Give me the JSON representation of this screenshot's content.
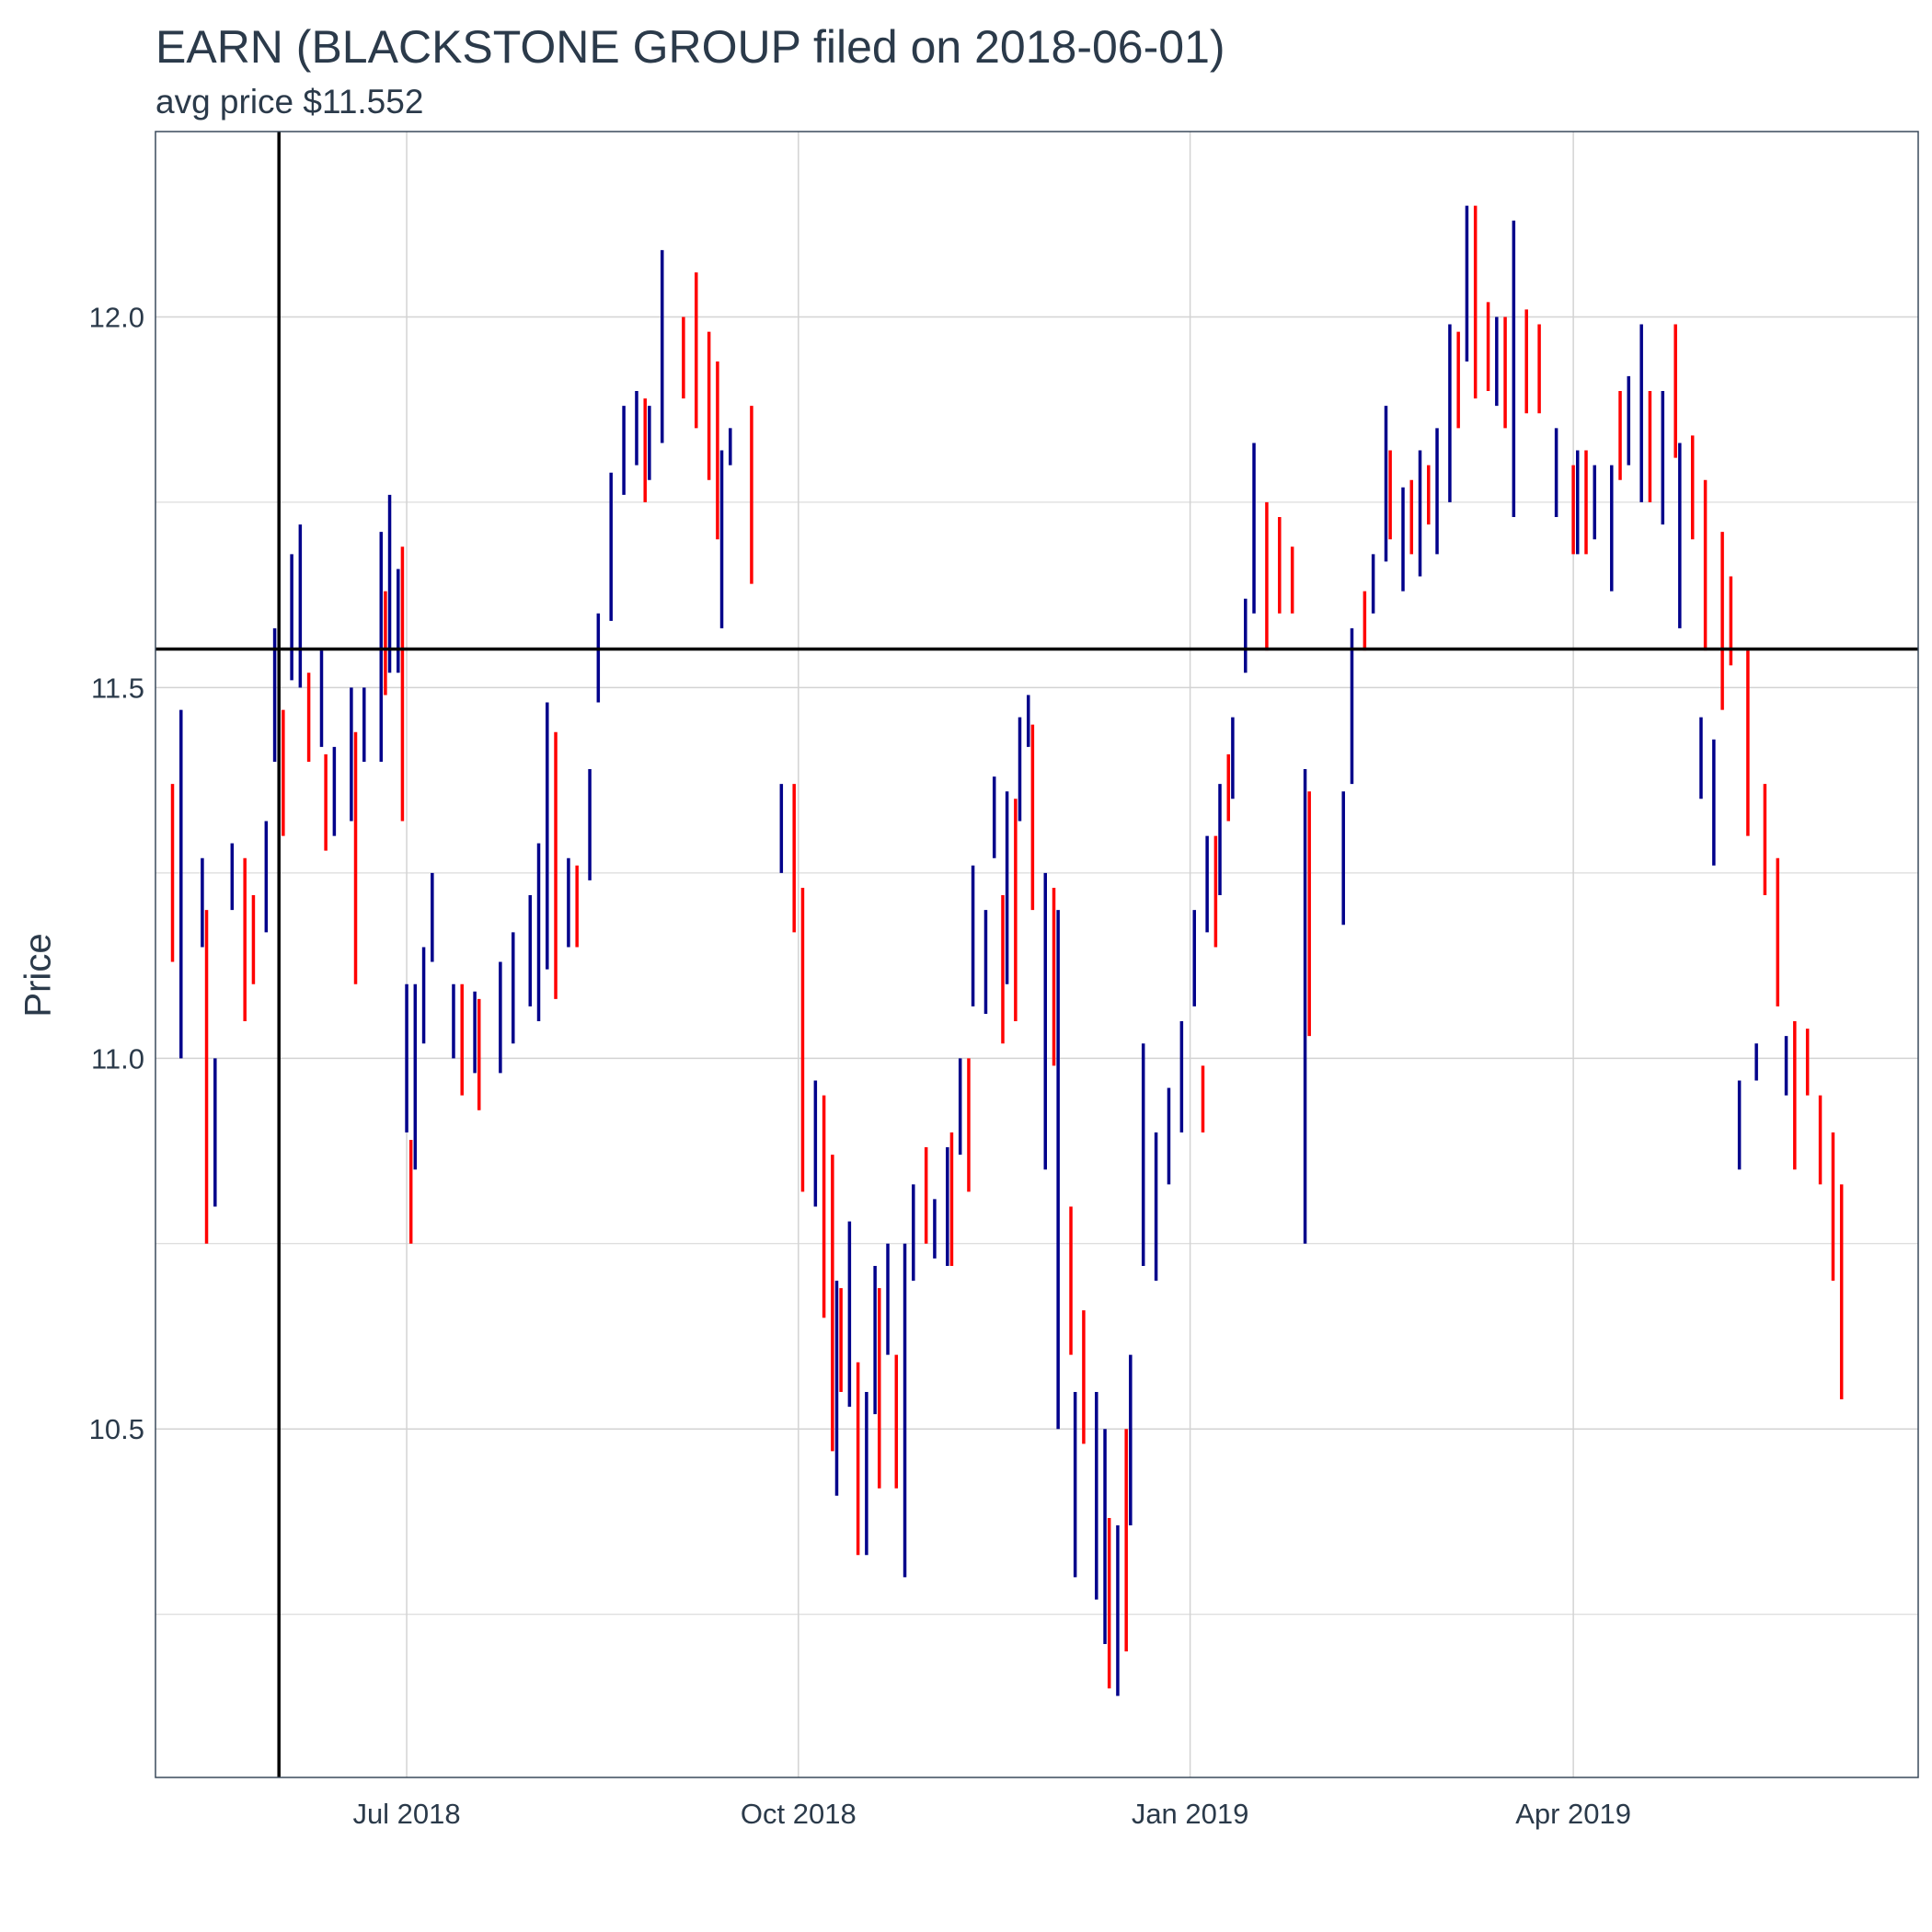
{
  "chart_data": {
    "type": "ohlc",
    "title": "EARN (BLACKSTONE GROUP filed on 2018-06-01)",
    "subtitle": "avg price $11.552",
    "xlabel": "",
    "ylabel": "Price",
    "x_axis": {
      "range": [
        "2018-05-03",
        "2019-06-21"
      ],
      "ticks": [
        {
          "date": "2018-07-01",
          "label": "Jul 2018"
        },
        {
          "date": "2018-10-01",
          "label": "Oct 2018"
        },
        {
          "date": "2019-01-01",
          "label": "Jan 2019"
        },
        {
          "date": "2019-04-01",
          "label": "Apr 2019"
        }
      ]
    },
    "y_axis": {
      "range": [
        10.03,
        12.25
      ],
      "ticks": [
        10.5,
        11.0,
        11.5,
        12.0
      ],
      "tick_labels": [
        "10.5",
        "11.0",
        "11.5",
        "12.0"
      ],
      "minor_ticks": [
        10.25,
        10.75,
        11.25,
        11.75
      ]
    },
    "grid": true,
    "reference_lines": [
      {
        "orientation": "vertical",
        "value": "2018-06-01",
        "color": "#000000"
      },
      {
        "orientation": "horizontal",
        "value": 11.552,
        "color": "#000000"
      }
    ],
    "colors": {
      "up": "#00008B",
      "down": "#FF0000",
      "grid": "#d3d3d3",
      "text": "#2b3a4a"
    },
    "series": [
      {
        "name": "up",
        "color": "#00008B",
        "segments": [
          [
            "2018-05-09",
            11.0,
            11.47
          ],
          [
            "2018-05-14",
            11.15,
            11.27
          ],
          [
            "2018-05-17",
            10.8,
            11.0
          ],
          [
            "2018-05-21",
            11.2,
            11.29
          ],
          [
            "2018-05-29",
            11.17,
            11.32
          ],
          [
            "2018-05-31",
            11.4,
            11.58
          ],
          [
            "2018-06-04",
            11.51,
            11.68
          ],
          [
            "2018-06-06",
            11.5,
            11.72
          ],
          [
            "2018-06-11",
            11.42,
            11.55
          ],
          [
            "2018-06-14",
            11.3,
            11.42
          ],
          [
            "2018-06-18",
            11.32,
            11.5
          ],
          [
            "2018-06-21",
            11.4,
            11.5
          ],
          [
            "2018-06-25",
            11.4,
            11.71
          ],
          [
            "2018-06-27",
            11.52,
            11.76
          ],
          [
            "2018-06-29",
            11.52,
            11.66
          ],
          [
            "2018-07-01",
            10.9,
            11.1
          ],
          [
            "2018-07-03",
            10.85,
            11.1
          ],
          [
            "2018-07-05",
            11.02,
            11.15
          ],
          [
            "2018-07-07",
            11.13,
            11.25
          ],
          [
            "2018-07-12",
            11.0,
            11.1
          ],
          [
            "2018-07-17",
            10.98,
            11.09
          ],
          [
            "2018-07-23",
            10.98,
            11.13
          ],
          [
            "2018-07-26",
            11.02,
            11.17
          ],
          [
            "2018-07-30",
            11.07,
            11.22
          ],
          [
            "2018-08-01",
            11.05,
            11.29
          ],
          [
            "2018-08-03",
            11.12,
            11.48
          ],
          [
            "2018-08-08",
            11.15,
            11.27
          ],
          [
            "2018-08-13",
            11.24,
            11.39
          ],
          [
            "2018-08-15",
            11.48,
            11.6
          ],
          [
            "2018-08-18",
            11.59,
            11.79
          ],
          [
            "2018-08-21",
            11.76,
            11.88
          ],
          [
            "2018-08-24",
            11.8,
            11.9
          ],
          [
            "2018-08-27",
            11.78,
            11.88
          ],
          [
            "2018-08-30",
            11.83,
            12.09
          ],
          [
            "2018-09-13",
            11.58,
            11.82
          ],
          [
            "2018-09-15",
            11.8,
            11.85
          ],
          [
            "2018-09-27",
            11.25,
            11.37
          ],
          [
            "2018-10-05",
            10.8,
            10.97
          ],
          [
            "2018-10-10",
            10.41,
            10.7
          ],
          [
            "2018-10-13",
            10.53,
            10.78
          ],
          [
            "2018-10-17",
            10.33,
            10.55
          ],
          [
            "2018-10-19",
            10.52,
            10.72
          ],
          [
            "2018-10-22",
            10.6,
            10.75
          ],
          [
            "2018-10-26",
            10.3,
            10.75
          ],
          [
            "2018-10-28",
            10.7,
            10.83
          ],
          [
            "2018-11-02",
            10.73,
            10.81
          ],
          [
            "2018-11-05",
            10.72,
            10.88
          ],
          [
            "2018-11-08",
            10.87,
            11.0
          ],
          [
            "2018-11-11",
            11.07,
            11.26
          ],
          [
            "2018-11-14",
            11.06,
            11.2
          ],
          [
            "2018-11-16",
            11.27,
            11.38
          ],
          [
            "2018-11-19",
            11.1,
            11.36
          ],
          [
            "2018-11-22",
            11.32,
            11.46
          ],
          [
            "2018-11-24",
            11.42,
            11.49
          ],
          [
            "2018-11-28",
            10.85,
            11.25
          ],
          [
            "2018-12-01",
            10.5,
            11.2
          ],
          [
            "2018-12-05",
            10.3,
            10.55
          ],
          [
            "2018-12-10",
            10.27,
            10.55
          ],
          [
            "2018-12-12",
            10.21,
            10.5
          ],
          [
            "2018-12-15",
            10.14,
            10.37
          ],
          [
            "2018-12-18",
            10.37,
            10.6
          ],
          [
            "2018-12-21",
            10.72,
            11.02
          ],
          [
            "2018-12-24",
            10.7,
            10.9
          ],
          [
            "2018-12-27",
            10.83,
            10.96
          ],
          [
            "2018-12-30",
            10.9,
            11.05
          ],
          [
            "2019-01-02",
            11.07,
            11.2
          ],
          [
            "2019-01-05",
            11.17,
            11.3
          ],
          [
            "2019-01-08",
            11.22,
            11.37
          ],
          [
            "2019-01-11",
            11.35,
            11.46
          ],
          [
            "2019-01-14",
            11.52,
            11.62
          ],
          [
            "2019-01-16",
            11.6,
            11.83
          ],
          [
            "2019-01-28",
            10.75,
            11.39
          ],
          [
            "2019-02-06",
            11.18,
            11.36
          ],
          [
            "2019-02-08",
            11.37,
            11.58
          ],
          [
            "2019-02-13",
            11.6,
            11.68
          ],
          [
            "2019-02-16",
            11.67,
            11.88
          ],
          [
            "2019-02-20",
            11.63,
            11.77
          ],
          [
            "2019-02-24",
            11.65,
            11.82
          ],
          [
            "2019-02-28",
            11.68,
            11.85
          ],
          [
            "2019-03-03",
            11.75,
            11.99
          ],
          [
            "2019-03-07",
            11.94,
            12.15
          ],
          [
            "2019-03-14",
            11.88,
            12.0
          ],
          [
            "2019-03-18",
            11.73,
            12.13
          ],
          [
            "2019-03-28",
            11.73,
            11.85
          ],
          [
            "2019-04-02",
            11.68,
            11.82
          ],
          [
            "2019-04-06",
            11.7,
            11.8
          ],
          [
            "2019-04-10",
            11.63,
            11.8
          ],
          [
            "2019-04-14",
            11.8,
            11.92
          ],
          [
            "2019-04-17",
            11.75,
            11.99
          ],
          [
            "2019-04-22",
            11.72,
            11.9
          ],
          [
            "2019-04-26",
            11.58,
            11.83
          ],
          [
            "2019-05-01",
            11.35,
            11.46
          ],
          [
            "2019-05-04",
            11.26,
            11.43
          ],
          [
            "2019-05-10",
            10.85,
            10.97
          ],
          [
            "2019-05-14",
            10.97,
            11.02
          ],
          [
            "2019-05-21",
            10.95,
            11.03
          ]
        ]
      },
      {
        "name": "down",
        "color": "#FF0000",
        "segments": [
          [
            "2018-05-07",
            11.13,
            11.37
          ],
          [
            "2018-05-15",
            10.75,
            11.2
          ],
          [
            "2018-05-24",
            11.05,
            11.27
          ],
          [
            "2018-05-26",
            11.1,
            11.22
          ],
          [
            "2018-06-02",
            11.3,
            11.47
          ],
          [
            "2018-06-08",
            11.4,
            11.52
          ],
          [
            "2018-06-12",
            11.28,
            11.41
          ],
          [
            "2018-06-19",
            11.1,
            11.44
          ],
          [
            "2018-06-26",
            11.49,
            11.63
          ],
          [
            "2018-06-30",
            11.32,
            11.69
          ],
          [
            "2018-07-02",
            10.75,
            10.89
          ],
          [
            "2018-07-14",
            10.95,
            11.1
          ],
          [
            "2018-07-18",
            10.93,
            11.08
          ],
          [
            "2018-08-05",
            11.08,
            11.44
          ],
          [
            "2018-08-10",
            11.15,
            11.26
          ],
          [
            "2018-08-26",
            11.75,
            11.89
          ],
          [
            "2018-09-04",
            11.89,
            12.0
          ],
          [
            "2018-09-07",
            11.85,
            12.06
          ],
          [
            "2018-09-10",
            11.78,
            11.98
          ],
          [
            "2018-09-12",
            11.7,
            11.94
          ],
          [
            "2018-09-20",
            11.64,
            11.88
          ],
          [
            "2018-09-30",
            11.17,
            11.37
          ],
          [
            "2018-10-02",
            10.82,
            11.23
          ],
          [
            "2018-10-07",
            10.65,
            10.95
          ],
          [
            "2018-10-09",
            10.47,
            10.87
          ],
          [
            "2018-10-11",
            10.55,
            10.69
          ],
          [
            "2018-10-15",
            10.33,
            10.59
          ],
          [
            "2018-10-20",
            10.42,
            10.69
          ],
          [
            "2018-10-24",
            10.42,
            10.6
          ],
          [
            "2018-10-31",
            10.75,
            10.88
          ],
          [
            "2018-11-06",
            10.72,
            10.9
          ],
          [
            "2018-11-10",
            10.82,
            11.0
          ],
          [
            "2018-11-18",
            11.02,
            11.22
          ],
          [
            "2018-11-21",
            11.05,
            11.35
          ],
          [
            "2018-11-25",
            11.2,
            11.45
          ],
          [
            "2018-11-30",
            10.99,
            11.23
          ],
          [
            "2018-12-04",
            10.6,
            10.8
          ],
          [
            "2018-12-07",
            10.48,
            10.66
          ],
          [
            "2018-12-13",
            10.15,
            10.38
          ],
          [
            "2018-12-17",
            10.2,
            10.5
          ],
          [
            "2019-01-04",
            10.9,
            10.99
          ],
          [
            "2019-01-07",
            11.15,
            11.3
          ],
          [
            "2019-01-10",
            11.32,
            11.41
          ],
          [
            "2019-01-19",
            11.55,
            11.75
          ],
          [
            "2019-01-22",
            11.6,
            11.73
          ],
          [
            "2019-01-25",
            11.6,
            11.69
          ],
          [
            "2019-01-29",
            11.03,
            11.36
          ],
          [
            "2019-02-11",
            11.55,
            11.63
          ],
          [
            "2019-02-17",
            11.7,
            11.82
          ],
          [
            "2019-02-22",
            11.68,
            11.78
          ],
          [
            "2019-02-26",
            11.72,
            11.8
          ],
          [
            "2019-03-05",
            11.85,
            11.98
          ],
          [
            "2019-03-09",
            11.89,
            12.15
          ],
          [
            "2019-03-12",
            11.9,
            12.02
          ],
          [
            "2019-03-16",
            11.85,
            12.0
          ],
          [
            "2019-03-21",
            11.87,
            12.01
          ],
          [
            "2019-03-24",
            11.87,
            11.99
          ],
          [
            "2019-04-01",
            11.68,
            11.8
          ],
          [
            "2019-04-04",
            11.68,
            11.82
          ],
          [
            "2019-04-12",
            11.78,
            11.9
          ],
          [
            "2019-04-19",
            11.75,
            11.9
          ],
          [
            "2019-04-25",
            11.81,
            11.99
          ],
          [
            "2019-04-29",
            11.7,
            11.84
          ],
          [
            "2019-05-02",
            11.55,
            11.78
          ],
          [
            "2019-05-06",
            11.47,
            11.71
          ],
          [
            "2019-05-08",
            11.53,
            11.65
          ],
          [
            "2019-05-12",
            11.3,
            11.55
          ],
          [
            "2019-05-16",
            11.22,
            11.37
          ],
          [
            "2019-05-19",
            11.07,
            11.27
          ],
          [
            "2019-05-23",
            10.85,
            11.05
          ],
          [
            "2019-05-26",
            10.95,
            11.04
          ],
          [
            "2019-05-29",
            10.83,
            10.95
          ],
          [
            "2019-06-01",
            10.7,
            10.9
          ],
          [
            "2019-06-03",
            10.54,
            10.83
          ]
        ]
      }
    ]
  }
}
